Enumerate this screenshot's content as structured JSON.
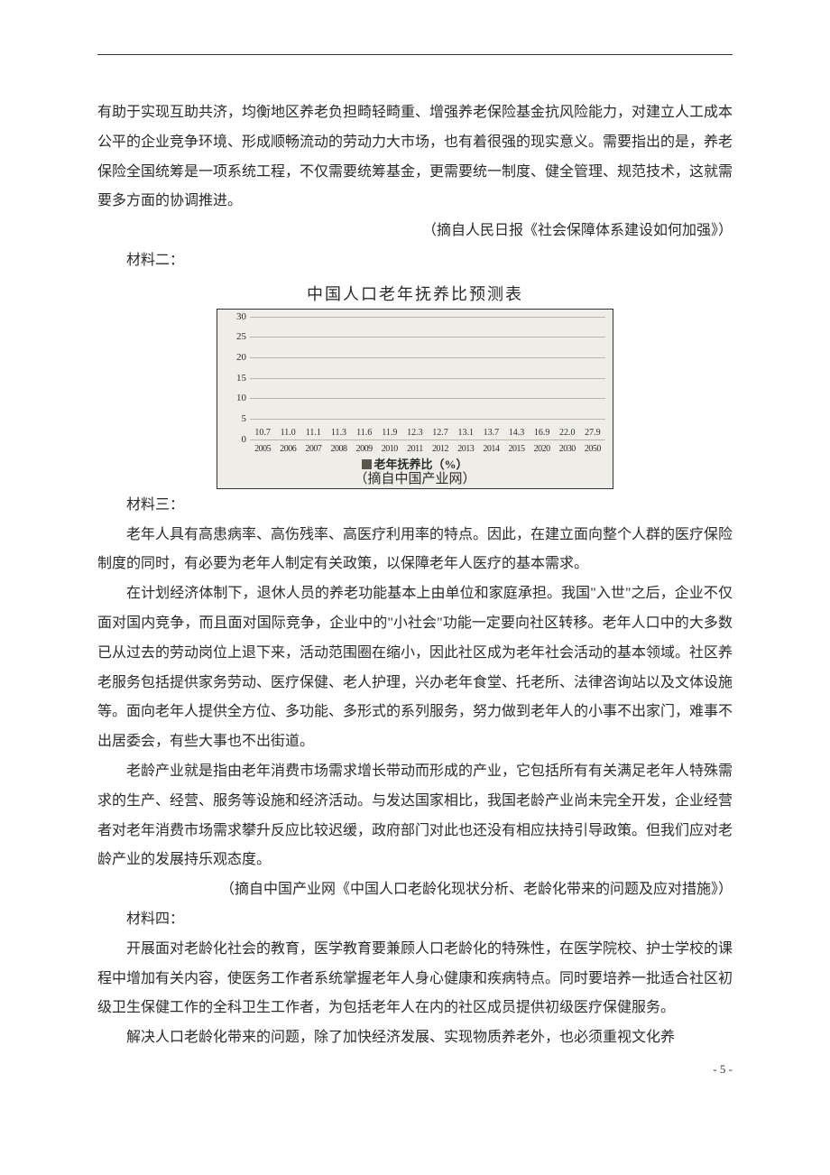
{
  "top_para": "有助于实现互助共济，均衡地区养老负担畸轻畸重、增强养老保险基金抗风险能力，对建立人工成本公平的企业竞争环境、形成顺畅流动的劳动力大市场，也有着很强的现实意义。需要指出的是，养老保险全国统筹是一项系统工程，不仅需要统筹基金，更需要统一制度、健全管理、规范技术，这就需要多方面的协调推进。",
  "top_source": "（摘自人民日报《社会保障体系建设如何加强》）",
  "mat2_label": "材料二：",
  "chart": {
    "title": "中国人口老年抚养比预测表",
    "categories": [
      "2005",
      "2006",
      "2007",
      "2008",
      "2009",
      "2010",
      "2011",
      "2012",
      "2013",
      "2014",
      "2015",
      "2020",
      "2030",
      "2050"
    ],
    "values": [
      10.7,
      11.0,
      11.1,
      11.3,
      11.6,
      11.9,
      12.3,
      12.7,
      13.1,
      13.7,
      14.3,
      16.9,
      22.0,
      27.9
    ],
    "value_labels": [
      "10.7",
      "11.0",
      "11.1",
      "11.3",
      "11.6",
      "11.9",
      "12.3",
      "12.7",
      "13.1",
      "13.7",
      "14.3",
      "16.9",
      "22.0",
      "27.9"
    ],
    "bar_color": "#5b564c",
    "background_color": "#efede8",
    "grid_color": "#b8b4a8",
    "ylim_max": 30,
    "yticks": [
      0,
      5,
      10,
      15,
      20,
      25,
      30
    ],
    "legend_text": "老年抚养比（%）",
    "source_text": "（摘自中国产业网）"
  },
  "mat3_label": "材料三：",
  "mat3_p1": "老年人具有高患病率、高伤残率、高医疗利用率的特点。因此，在建立面向整个人群的医疗保险制度的同时，有必要为老年人制定有关政策，以保障老年人医疗的基本需求。",
  "mat3_p2": "在计划经济体制下，退休人员的养老功能基本上由单位和家庭承担。我国\"入世\"之后，企业不仅面对国内竞争，而且面对国际竞争，企业中的\"小社会\"功能一定要向社区转移。老年人口中的大多数已从过去的劳动岗位上退下来，活动范围圈在缩小，因此社区成为老年社会活动的基本领域。社区养老服务包括提供家务劳动、医疗保健、老人护理，兴办老年食堂、托老所、法律咨询站以及文体设施等。面向老年人提供全方位、多功能、多形式的系列服务，努力做到老年人的小事不出家门，难事不出居委会，有些大事也不出街道。",
  "mat3_p3": "老龄产业就是指由老年消费市场需求增长带动而形成的产业，它包括所有有关满足老年人特殊需求的生产、经营、服务等设施和经济活动。与发达国家相比，我国老龄产业尚未完全开发，企业经营者对老年消费市场需求攀升反应比较迟缓，政府部门对此也还没有相应扶持引导政策。但我们应对老龄产业的发展持乐观态度。",
  "mat3_source": "（摘自中国产业网《中国人口老龄化现状分析、老龄化带来的问题及应对措施》）",
  "mat4_label": "材料四：",
  "mat4_p1": "开展面对老龄化社会的教育，医学教育要兼顾人口老龄化的特殊性，在医学院校、护士学校的课程中增加有关内容，使医务工作者系统掌握老年人身心健康和疾病特点。同时要培养一批适合社区初级卫生保健工作的全科卫生工作者，为包括老年人在内的社区成员提供初级医疗保健服务。",
  "mat4_p2": "解决人口老龄化带来的问题，除了加快经济发展、实现物质养老外，也必须重视文化养",
  "page_number": "- 5 -"
}
